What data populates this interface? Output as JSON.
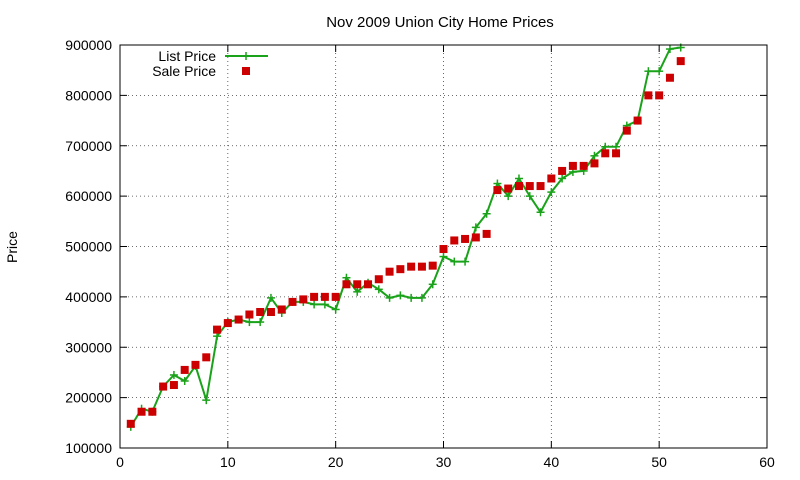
{
  "chart_data": {
    "type": "line",
    "title": "Nov 2009 Union City Home Prices",
    "xlabel": "",
    "ylabel": "Price",
    "xlim": [
      0,
      60
    ],
    "ylim": [
      100000,
      900000
    ],
    "xticks": [
      0,
      10,
      20,
      30,
      40,
      50,
      60
    ],
    "yticks": [
      100000,
      200000,
      300000,
      400000,
      500000,
      600000,
      700000,
      800000,
      900000
    ],
    "grid": true,
    "legend_position": "top-left",
    "x": [
      1,
      2,
      3,
      4,
      5,
      6,
      7,
      8,
      9,
      10,
      11,
      12,
      13,
      14,
      15,
      16,
      17,
      18,
      19,
      20,
      21,
      22,
      23,
      24,
      25,
      26,
      27,
      28,
      29,
      30,
      31,
      32,
      33,
      34,
      35,
      36,
      37,
      38,
      39,
      40,
      41,
      42,
      43,
      44,
      45,
      46,
      47,
      48,
      49,
      50,
      51,
      52
    ],
    "series": [
      {
        "name": "List Price",
        "style": "linespoints",
        "color": "#1aa31a",
        "values": [
          142000,
          178000,
          172000,
          222000,
          245000,
          233000,
          263000,
          195000,
          322000,
          350000,
          355000,
          350000,
          350000,
          398000,
          368000,
          390000,
          390000,
          385000,
          385000,
          375000,
          438000,
          410000,
          428000,
          415000,
          398000,
          403000,
          398000,
          398000,
          425000,
          480000,
          470000,
          470000,
          538000,
          565000,
          625000,
          600000,
          635000,
          600000,
          568000,
          608000,
          635000,
          648000,
          650000,
          680000,
          698000,
          698000,
          740000,
          750000,
          848000,
          848000,
          892000,
          895000
        ]
      },
      {
        "name": "Sale Price",
        "style": "points",
        "color": "#cc0000",
        "values": [
          148000,
          172000,
          172000,
          222000,
          225000,
          255000,
          265000,
          280000,
          335000,
          348000,
          355000,
          365000,
          370000,
          370000,
          375000,
          390000,
          395000,
          400000,
          400000,
          400000,
          425000,
          425000,
          425000,
          435000,
          450000,
          455000,
          460000,
          460000,
          462000,
          495000,
          512000,
          515000,
          518000,
          525000,
          612000,
          615000,
          620000,
          620000,
          620000,
          635000,
          650000,
          660000,
          660000,
          665000,
          685000,
          685000,
          730000,
          750000,
          800000,
          800000,
          835000,
          868000
        ]
      }
    ]
  }
}
